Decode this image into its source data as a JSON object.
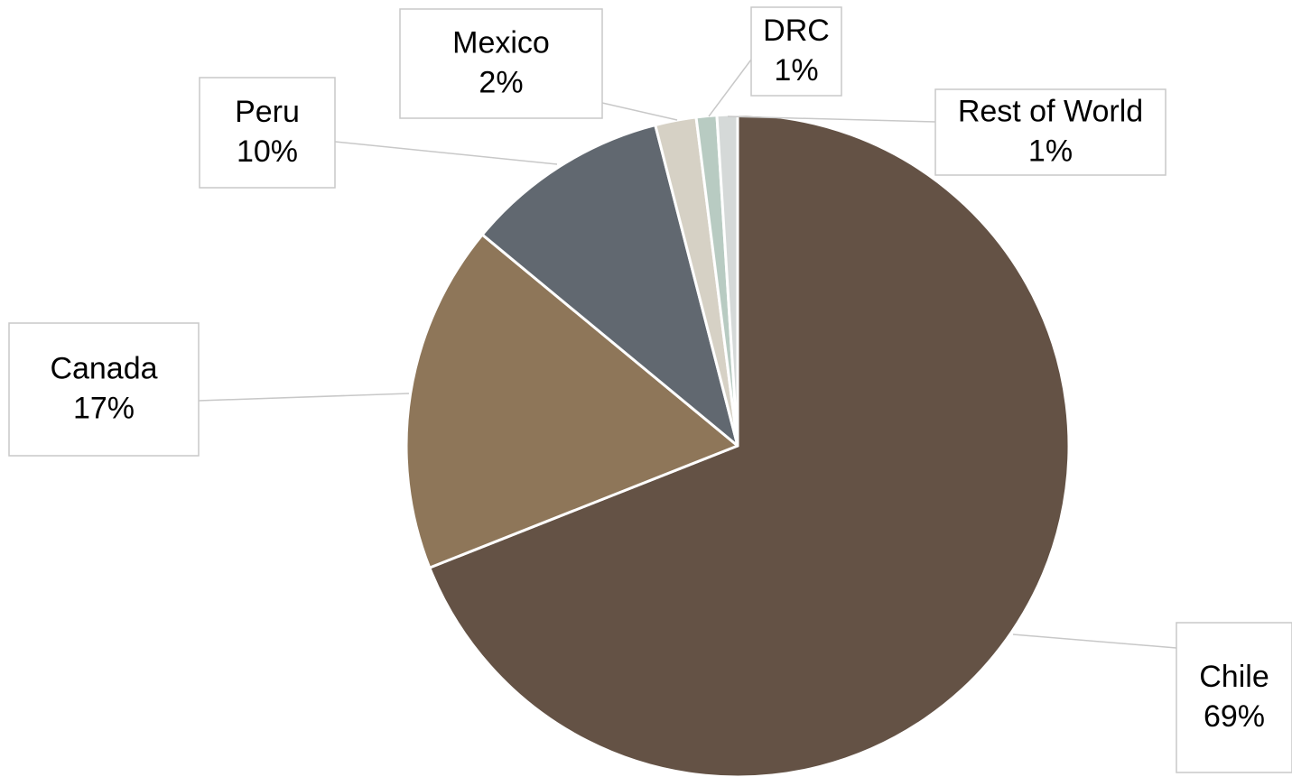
{
  "chart_data": {
    "type": "pie",
    "title": "",
    "slices": [
      {
        "label": "Chile",
        "value_label": "69%",
        "value": 69,
        "color": "#645245"
      },
      {
        "label": "Canada",
        "value_label": "17%",
        "value": 17,
        "color": "#8e7659"
      },
      {
        "label": "Peru",
        "value_label": "10%",
        "value": 10,
        "color": "#616870"
      },
      {
        "label": "Mexico",
        "value_label": "2%",
        "value": 2,
        "color": "#d6d1c5"
      },
      {
        "label": "DRC",
        "value_label": "1%",
        "value": 1,
        "color": "#b8cbc2"
      },
      {
        "label": "Rest of World",
        "value_label": "1%",
        "value": 1,
        "color": "#d5d9d8"
      }
    ],
    "label_style": "callout boxes with leader lines",
    "slice_border_color": "#ffffff",
    "callout_border_color": "#c8c8c8"
  }
}
